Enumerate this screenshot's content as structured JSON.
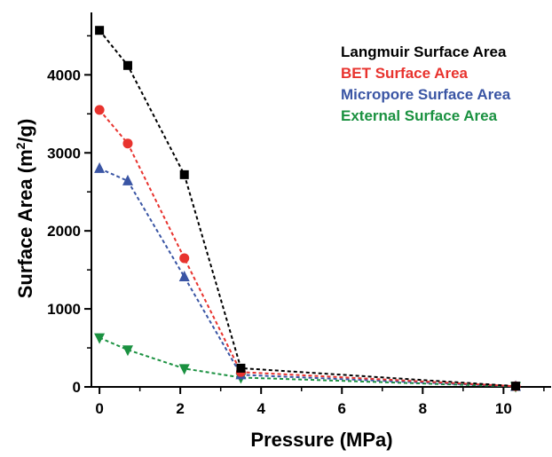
{
  "chart_data": {
    "type": "line",
    "title": "",
    "xlabel": "Pressure (MPa)",
    "ylabel": {
      "prefix": "Surface Area (m",
      "superscript": "2",
      "suffix": "/g)"
    },
    "xlim": [
      -0.2,
      11.2
    ],
    "ylim": [
      0,
      4800
    ],
    "x_ticks": [
      0,
      2,
      4,
      6,
      8,
      10
    ],
    "y_ticks": [
      0,
      1000,
      2000,
      3000,
      4000
    ],
    "grid": false,
    "legend_position": "top-right",
    "series": [
      {
        "name": "Langmuir Surface Area",
        "color": "#000000",
        "marker": "square",
        "x": [
          0,
          0.7,
          2.1,
          3.5,
          10.3
        ],
        "y": [
          4570,
          4120,
          2720,
          240,
          10
        ]
      },
      {
        "name": "BET Surface Area",
        "color": "#e8332e",
        "marker": "circle",
        "x": [
          0,
          0.7,
          2.1,
          3.5,
          10.3
        ],
        "y": [
          3550,
          3120,
          1650,
          190,
          8
        ]
      },
      {
        "name": "Micropore Surface Area",
        "color": "#3a55a4",
        "marker": "triangle-up",
        "x": [
          0,
          0.7,
          2.1,
          3.5,
          10.3
        ],
        "y": [
          2800,
          2640,
          1410,
          155,
          6
        ]
      },
      {
        "name": "External Surface Area",
        "color": "#1a9140",
        "marker": "triangle-down",
        "x": [
          0,
          0.7,
          2.1,
          3.5,
          10.3
        ],
        "y": [
          630,
          475,
          235,
          120,
          5
        ]
      }
    ]
  }
}
